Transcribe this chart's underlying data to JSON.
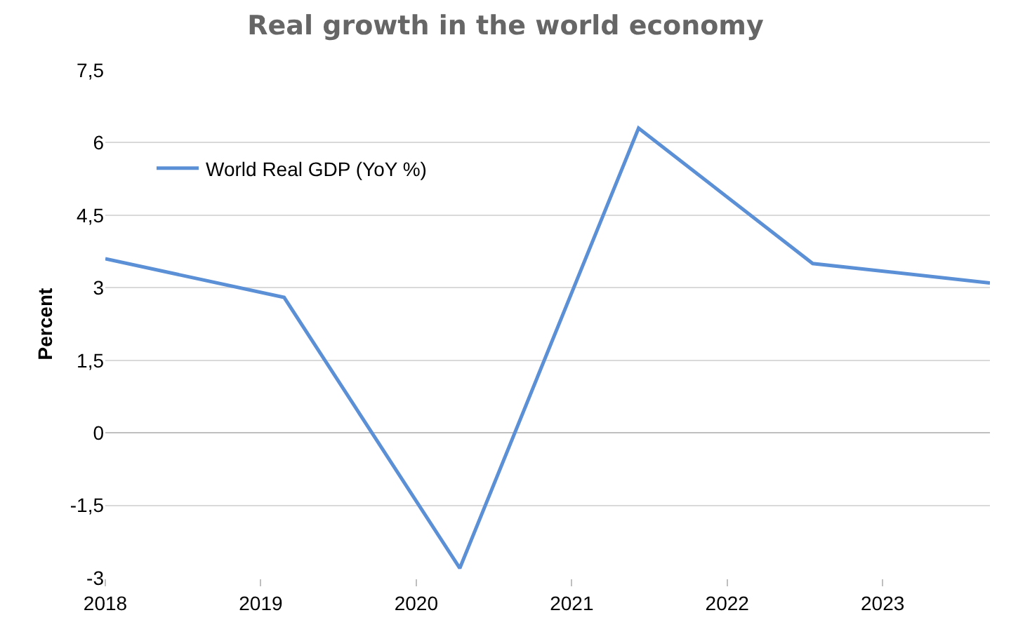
{
  "chart_data": {
    "type": "line",
    "title": "Real growth in the world economy",
    "ylabel": "Percent",
    "x": [
      2018,
      2019.15,
      2020.28,
      2021.43,
      2022.55,
      2023.69
    ],
    "series": [
      {
        "name": "World Real GDP (YoY %)",
        "color": "#5b8fd6",
        "values": [
          3.6,
          2.8,
          -2.8,
          6.3,
          3.5,
          3.1
        ]
      }
    ],
    "xlim": [
      2018,
      2023.69
    ],
    "xticks": [
      2018,
      2019,
      2020,
      2021,
      2022,
      2023
    ],
    "ylim": [
      -3,
      7.5
    ],
    "yticks": [
      {
        "value": -3,
        "label": "-3"
      },
      {
        "value": -1.5,
        "label": "-1,5"
      },
      {
        "value": 0,
        "label": "0"
      },
      {
        "value": 1.5,
        "label": "1,5"
      },
      {
        "value": 3,
        "label": "3"
      },
      {
        "value": 4.5,
        "label": "4,5"
      },
      {
        "value": 6,
        "label": "6"
      },
      {
        "value": 7.5,
        "label": "7,5"
      }
    ],
    "grid": "y",
    "legend": "top left",
    "marker": "none",
    "line_style": "solid"
  }
}
